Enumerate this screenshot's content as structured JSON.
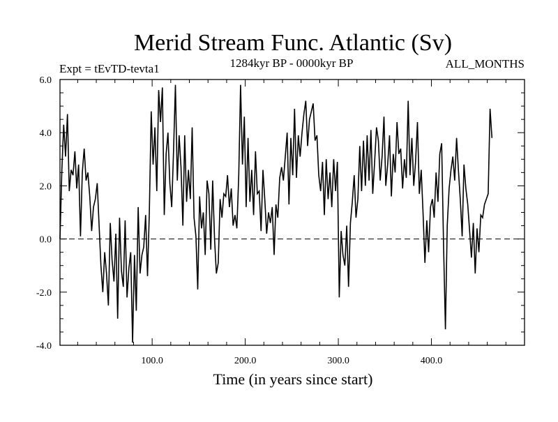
{
  "chart_data": {
    "type": "line",
    "title": "Merid Stream Func. Atlantic (Sv)",
    "subtitle_left": "Expt = tEvTD-tevta1",
    "subtitle_center": "1284kyr BP - 0000kyr BP",
    "subtitle_right": "ALL_MONTHS",
    "xlabel": "Time (in years since start)",
    "ylabel": "",
    "xlim": [
      1,
      500
    ],
    "ylim": [
      -4.0,
      6.0
    ],
    "x_ticks": [
      100,
      200,
      300,
      400
    ],
    "x_tick_labels": [
      "100.0",
      "200.0",
      "300.0",
      "400.0"
    ],
    "y_ticks": [
      -4,
      -2,
      0,
      2,
      4,
      6
    ],
    "y_tick_labels": [
      "-4.0",
      "-2.0",
      "0.0",
      "2.0",
      "4.0",
      "6.0"
    ],
    "reference_line": {
      "y": 0.0,
      "style": "dashed"
    },
    "series": [
      {
        "name": "Merid Stream Func. Atlantic",
        "step": 2,
        "x_start": 1,
        "values": [
          0.0,
          2.6,
          4.3,
          3.1,
          4.7,
          1.8,
          2.6,
          2.4,
          3.3,
          1.9,
          2.8,
          0.1,
          2.5,
          3.4,
          2.2,
          2.5,
          1.6,
          0.3,
          1.2,
          1.5,
          2.1,
          0.5,
          -1.0,
          -2.0,
          -0.5,
          -1.3,
          -2.5,
          0.6,
          -0.8,
          -1.6,
          0.2,
          -3.0,
          0.8,
          -1.2,
          -1.8,
          0.7,
          -2.2,
          -1.1,
          -0.5,
          -3.9,
          -0.6,
          -2.7,
          1.2,
          -1.3,
          -0.6,
          -0.3,
          0.9,
          -1.4,
          1.0,
          4.8,
          2.8,
          4.2,
          1.8,
          5.6,
          4.4,
          5.7,
          0.9,
          3.2,
          4.0,
          2.1,
          1.2,
          3.3,
          5.8,
          2.2,
          3.9,
          2.7,
          0.5,
          3.9,
          1.4,
          2.6,
          1.5,
          4.2,
          0.8,
          0.1,
          -1.9,
          1.6,
          0.4,
          1.0,
          -0.6,
          2.2,
          1.7,
          -0.4,
          2.2,
          0.0,
          -1.3,
          -0.9,
          1.5,
          0.8,
          1.7,
          1.6,
          2.4,
          1.2,
          1.9,
          0.5,
          0.9,
          0.4,
          2.4,
          5.8,
          2.8,
          4.6,
          1.2,
          3.8,
          1.4,
          2.6,
          0.9,
          3.3,
          1.7,
          1.8,
          0.3,
          2.6,
          1.5,
          0.2,
          1.0,
          0.6,
          1.2,
          -0.6,
          1.3,
          0.8,
          2.3,
          2.7,
          2.2,
          3.1,
          4.0,
          1.3,
          3.8,
          2.4,
          4.9,
          2.3,
          3.9,
          3.1,
          4.0,
          4.7,
          5.2,
          3.5,
          4.5,
          4.8,
          5.1,
          3.7,
          3.9,
          2.4,
          1.8,
          2.9,
          0.9,
          3.0,
          1.5,
          2.5,
          1.2,
          3.0,
          1.8,
          2.9,
          -2.2,
          0.3,
          -0.6,
          -1.0,
          0.5,
          -1.8,
          0.6,
          1.4,
          2.4,
          0.8,
          1.5,
          3.5,
          1.8,
          3.7,
          2.0,
          3.9,
          2.2,
          4.1,
          1.7,
          2.9,
          4.2,
          3.7,
          2.2,
          3.1,
          4.6,
          2.0,
          2.8,
          3.9,
          1.6,
          3.2,
          2.5,
          4.4,
          3.2,
          3.4,
          1.9,
          3.0,
          2.3,
          5.2,
          2.4,
          3.8,
          2.0,
          2.9,
          4.4,
          1.7,
          2.6,
          1.0,
          -0.9,
          0.7,
          -0.5,
          1.2,
          1.5,
          0.8,
          2.5,
          1.4,
          3.2,
          3.6,
          -0.2,
          -3.4,
          0.5,
          1.9,
          2.6,
          3.1,
          2.2,
          3.8,
          2.6,
          1.5,
          0.1,
          2.8,
          1.9,
          1.3,
          0.3,
          -0.7,
          0.6,
          -1.3,
          0.4,
          -0.5,
          0.9,
          0.8,
          1.3,
          1.5,
          1.7,
          4.9,
          3.8
        ]
      }
    ]
  }
}
